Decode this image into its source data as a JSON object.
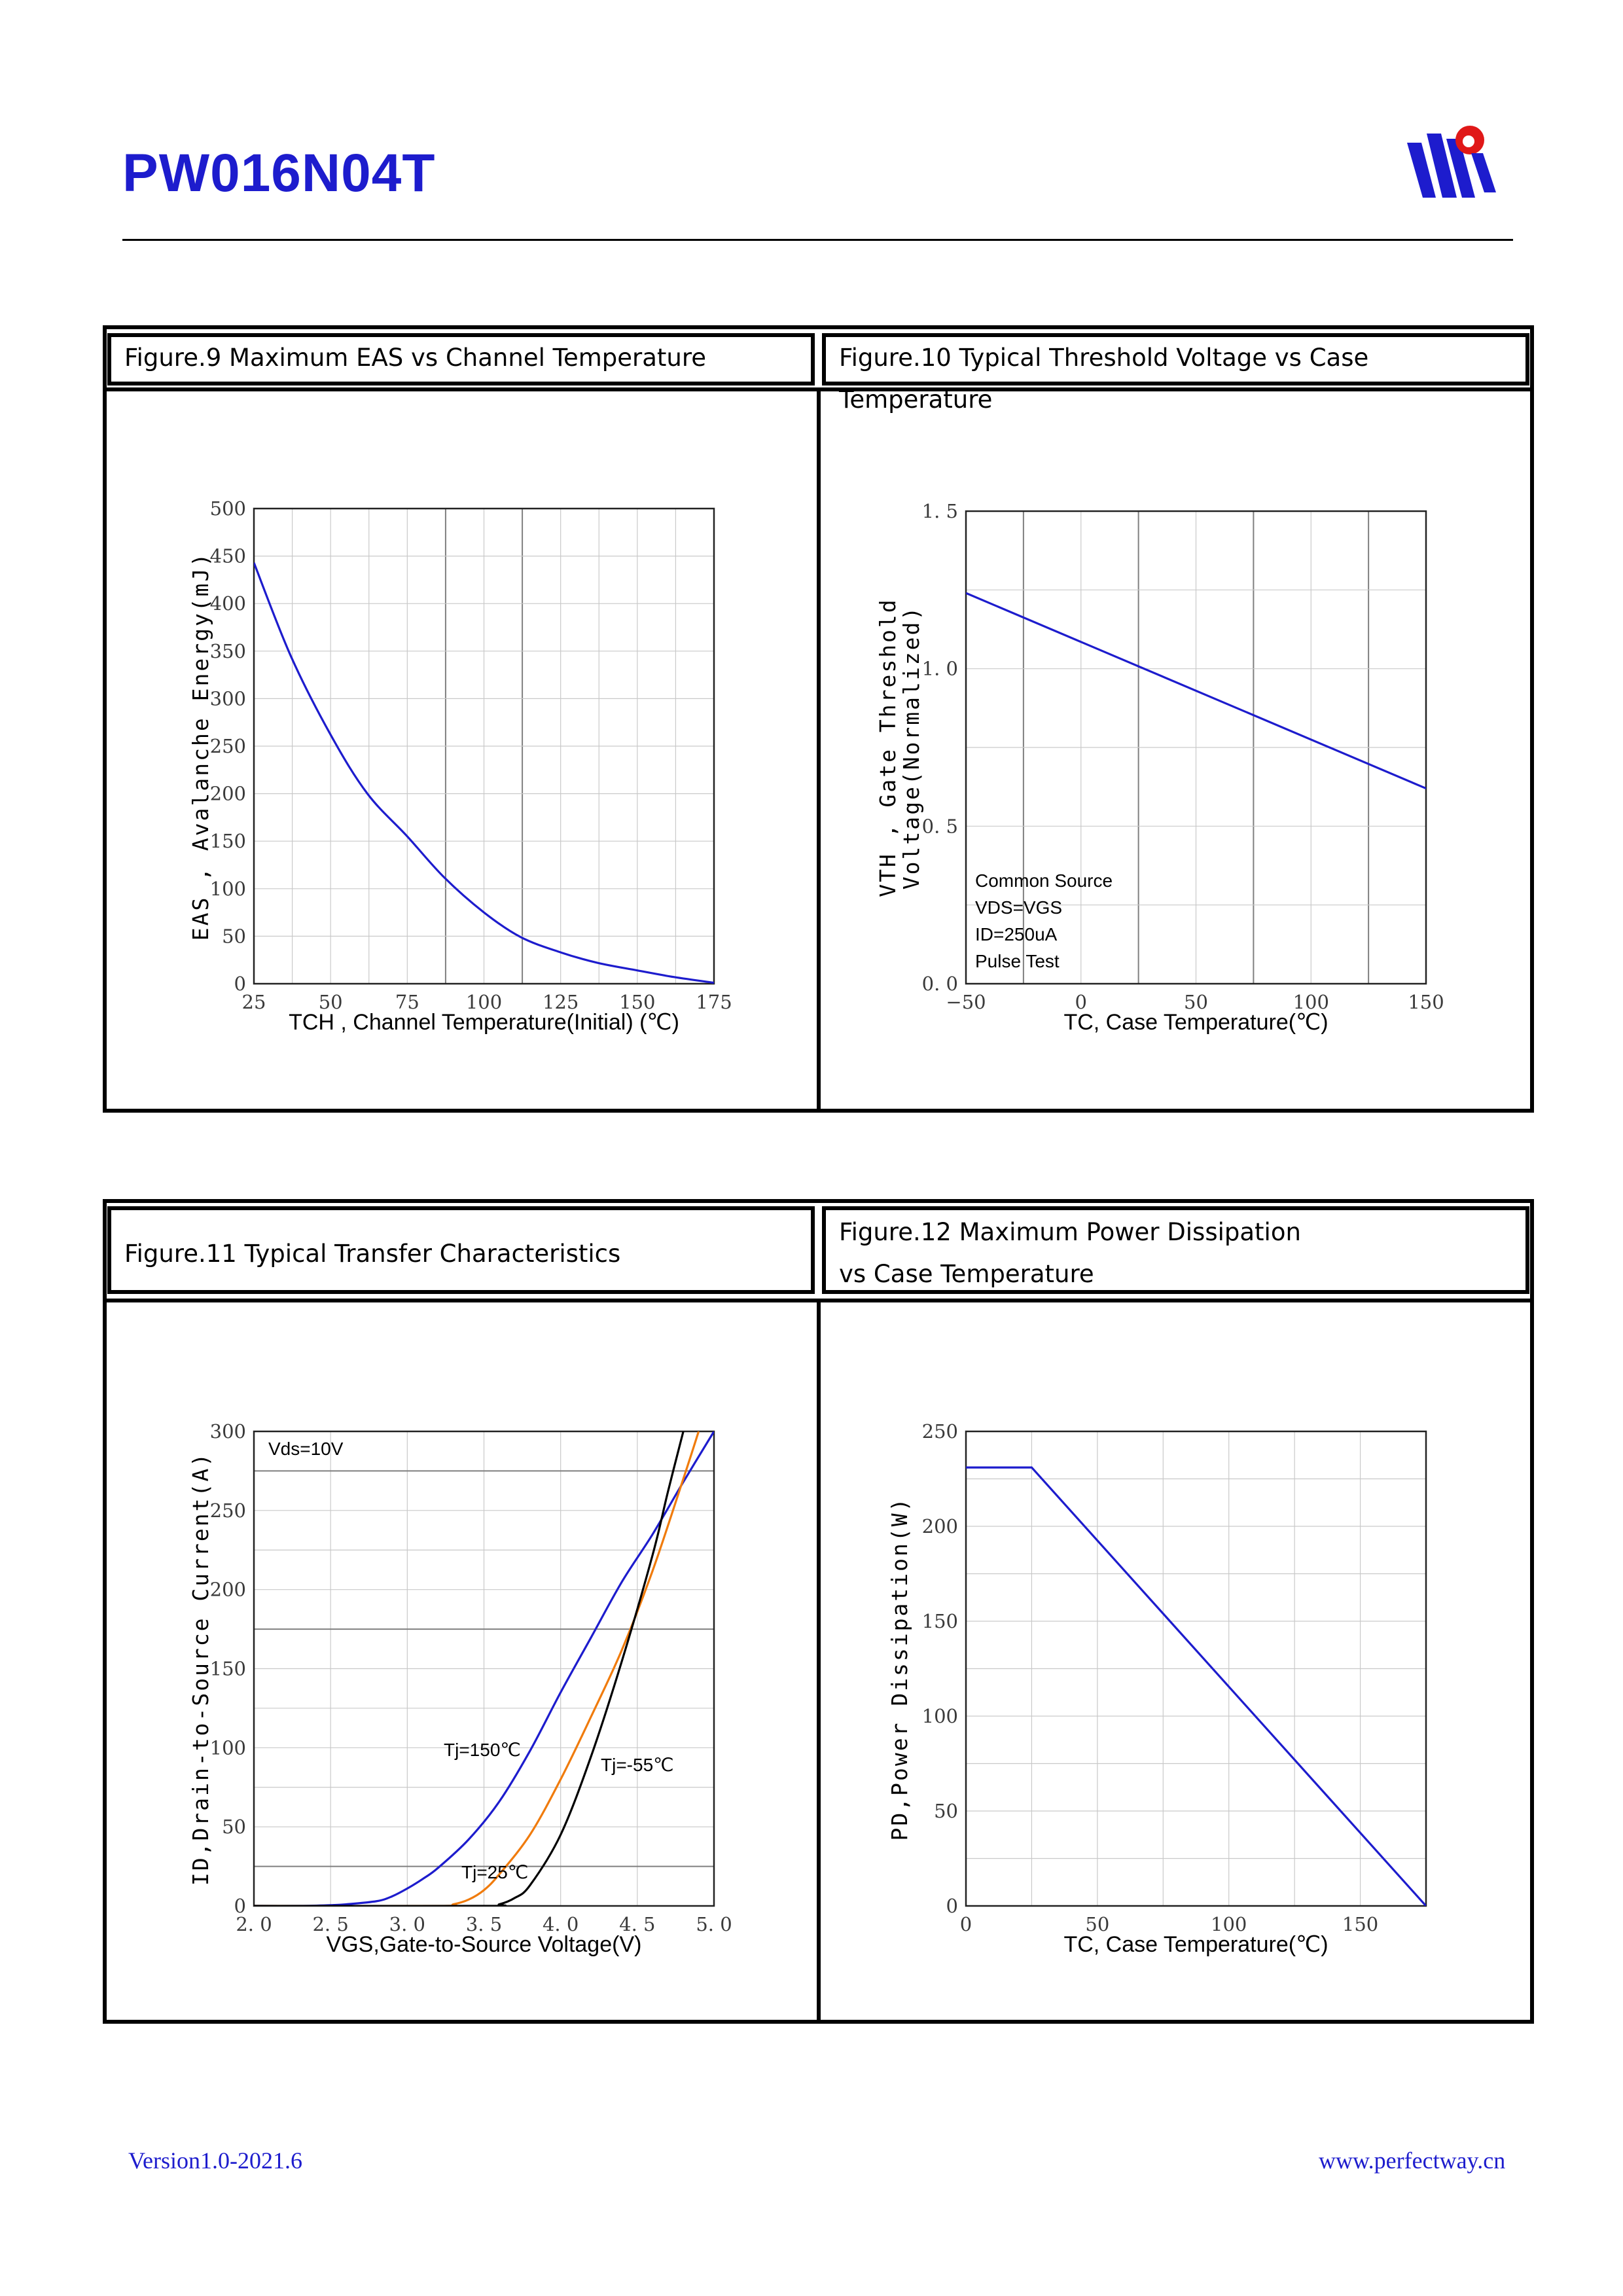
{
  "header": {
    "part_number": "PW016N04T"
  },
  "footer": {
    "version": "Version1.0-2021.6",
    "website": "www.perfectway.cn"
  },
  "colors": {
    "brand_blue": "#1d1ccd",
    "curve_blue": "#1d1ccd",
    "curve_orange": "#f07b0c",
    "curve_black": "#000000"
  },
  "figures": {
    "fig9": {
      "caption": "Figure.9 Maximum EAS vs Channel Temperature"
    },
    "fig10": {
      "caption": "Figure.10 Typical Threshold Voltage vs Case Temperature"
    },
    "fig11": {
      "caption": "Figure.11 Typical Transfer Characteristics"
    },
    "fig12": {
      "caption_line1": "Figure.12 Maximum Power Dissipation",
      "caption_line2": "vs Case Temperature"
    }
  },
  "chart_data": [
    {
      "id": "fig9",
      "type": "line",
      "title": "Figure.9 Maximum EAS vs Channel Temperature",
      "xlabel": "TCH , Channel Temperature(Initial) (℃)",
      "ylabel": "EAS , Avalanche Energy(mJ)",
      "xlim": [
        25,
        175
      ],
      "ylim": [
        0,
        500
      ],
      "xticks": [
        25,
        50,
        75,
        100,
        125,
        150,
        175
      ],
      "yticks": [
        0,
        50,
        100,
        150,
        200,
        250,
        300,
        350,
        400,
        450,
        500
      ],
      "xtick_labels": [
        "25",
        "50",
        "75",
        "100",
        "125",
        "150",
        "175"
      ],
      "ytick_labels": [
        "0",
        "50",
        "100",
        "150",
        "200",
        "250",
        "300",
        "350",
        "400",
        "450",
        "500"
      ],
      "xgrid": [
        25,
        37.5,
        50,
        62.5,
        75,
        87.5,
        100,
        112.5,
        125,
        137.5,
        150,
        162.5,
        175
      ],
      "ygrid": [
        0,
        50,
        100,
        150,
        200,
        250,
        300,
        350,
        400,
        450,
        500
      ],
      "xgrid_major": [
        87.5,
        112.5
      ],
      "ygrid_major": [],
      "series": [
        {
          "name": "EAS",
          "color": "#1d1ccd",
          "x": [
            25,
            37,
            50,
            62,
            75,
            87,
            100,
            112,
            125,
            137,
            150,
            162,
            175
          ],
          "y": [
            443,
            345,
            262,
            200,
            155,
            112,
            75,
            49,
            33,
            22,
            14,
            7,
            1
          ]
        }
      ]
    },
    {
      "id": "fig10",
      "type": "line",
      "title": "Figure.10 Typical Threshold Voltage vs Case Temperature",
      "xlabel": "TC, Case Temperature(℃)",
      "ylabel": "VTH , Gate Threshold Voltage(Normalized)",
      "ylabel_lines": [
        "VTH , Gate Threshold",
        "Voltage(Normalized)"
      ],
      "xlim": [
        -50,
        150
      ],
      "ylim": [
        0,
        1.5
      ],
      "xticks": [
        -50,
        0,
        50,
        100,
        150
      ],
      "yticks": [
        0,
        0.5,
        1.0,
        1.5
      ],
      "xtick_labels": [
        "−50",
        "0",
        "50",
        "100",
        "150"
      ],
      "ytick_labels": [
        "0. 0",
        "0. 5",
        "1. 0",
        "1. 5"
      ],
      "xgrid": [
        -50,
        -25,
        0,
        25,
        50,
        75,
        100,
        125,
        150
      ],
      "ygrid": [
        0,
        0.25,
        0.5,
        0.75,
        1.0,
        1.25,
        1.5
      ],
      "xgrid_major": [
        -25,
        25,
        75,
        125
      ],
      "ygrid_major": [],
      "annotation": [
        "Common Source",
        "VDS=VGS",
        "ID=250uA",
        "Pulse Test"
      ],
      "series": [
        {
          "name": "VTH",
          "color": "#1d1ccd",
          "x": [
            -50,
            150
          ],
          "y": [
            1.24,
            0.62
          ]
        }
      ]
    },
    {
      "id": "fig11",
      "type": "line",
      "title": "Figure.11 Typical Transfer Characteristics",
      "xlabel": "VGS,Gate-to-Source Voltage(V)",
      "ylabel": "ID,Drain-to-Source Current(A)",
      "xlim": [
        2.0,
        5.0
      ],
      "ylim": [
        0,
        300
      ],
      "xticks": [
        2.0,
        2.5,
        3.0,
        3.5,
        4.0,
        4.5,
        5.0
      ],
      "yticks": [
        0,
        50,
        100,
        150,
        200,
        250,
        300
      ],
      "xtick_labels": [
        "2. 0",
        "2. 5",
        "3. 0",
        "3. 5",
        "4. 0",
        "4. 5",
        "5. 0"
      ],
      "ytick_labels": [
        "0",
        "50",
        "100",
        "150",
        "200",
        "250",
        "300"
      ],
      "xgrid": [
        2.0,
        2.5,
        3.0,
        3.5,
        4.0,
        4.5,
        5.0
      ],
      "ygrid": [
        0,
        25,
        50,
        75,
        100,
        125,
        150,
        175,
        200,
        225,
        250,
        275,
        300
      ],
      "xgrid_major": [],
      "ygrid_major": [
        25,
        175,
        275
      ],
      "annotation": [
        "Vds=10V"
      ],
      "series": [
        {
          "name": "Tj=150℃",
          "color": "#1d1ccd",
          "x": [
            2.0,
            2.3,
            2.5,
            2.6,
            2.8,
            2.9,
            3.0,
            3.1,
            3.2,
            3.4,
            3.6,
            3.8,
            4.0,
            4.2,
            4.4,
            4.6,
            4.8,
            5.0
          ],
          "y": [
            0,
            0,
            0.5,
            1,
            3,
            6,
            11,
            17,
            24,
            42,
            66,
            98,
            135,
            170,
            205,
            235,
            268,
            300
          ]
        },
        {
          "name": "Tj=25℃",
          "color": "#f07b0c",
          "x": [
            2.0,
            3.2,
            3.3,
            3.4,
            3.5,
            3.6,
            3.8,
            4.0,
            4.2,
            4.4,
            4.6,
            4.8,
            4.9
          ],
          "y": [
            0,
            0,
            1,
            4,
            10,
            20,
            45,
            80,
            120,
            162,
            212,
            270,
            300
          ]
        },
        {
          "name": "Tj=-55℃",
          "color": "#000000",
          "x": [
            2.0,
            3.5,
            3.6,
            3.7,
            3.8,
            4.0,
            4.2,
            4.4,
            4.6,
            4.7,
            4.8
          ],
          "y": [
            0,
            0,
            1,
            5,
            13,
            45,
            95,
            155,
            222,
            262,
            300
          ]
        }
      ],
      "curve_labels": [
        "Tj=150℃",
        "Tj=25℃",
        "Tj=-55℃"
      ]
    },
    {
      "id": "fig12",
      "type": "line",
      "title": "Figure.12 Maximum Power Dissipation vs Case Temperature",
      "xlabel": "TC, Case Temperature(℃)",
      "ylabel": "PD,Power Dissipation(W)",
      "xlim": [
        0,
        175
      ],
      "ylim": [
        0,
        250
      ],
      "xticks": [
        0,
        50,
        100,
        150
      ],
      "yticks": [
        0,
        50,
        100,
        150,
        200,
        250
      ],
      "xtick_labels": [
        "0",
        "50",
        "100",
        "150"
      ],
      "ytick_labels": [
        "0",
        "50",
        "100",
        "150",
        "200",
        "250"
      ],
      "xgrid": [
        0,
        25,
        50,
        75,
        100,
        125,
        150,
        175
      ],
      "ygrid": [
        0,
        25,
        50,
        75,
        100,
        125,
        150,
        175,
        200,
        225,
        250
      ],
      "xgrid_major": [],
      "ygrid_major": [],
      "series": [
        {
          "name": "PD",
          "color": "#1d1ccd",
          "x": [
            0,
            25,
            175
          ],
          "y": [
            231,
            231,
            0
          ]
        }
      ]
    }
  ]
}
